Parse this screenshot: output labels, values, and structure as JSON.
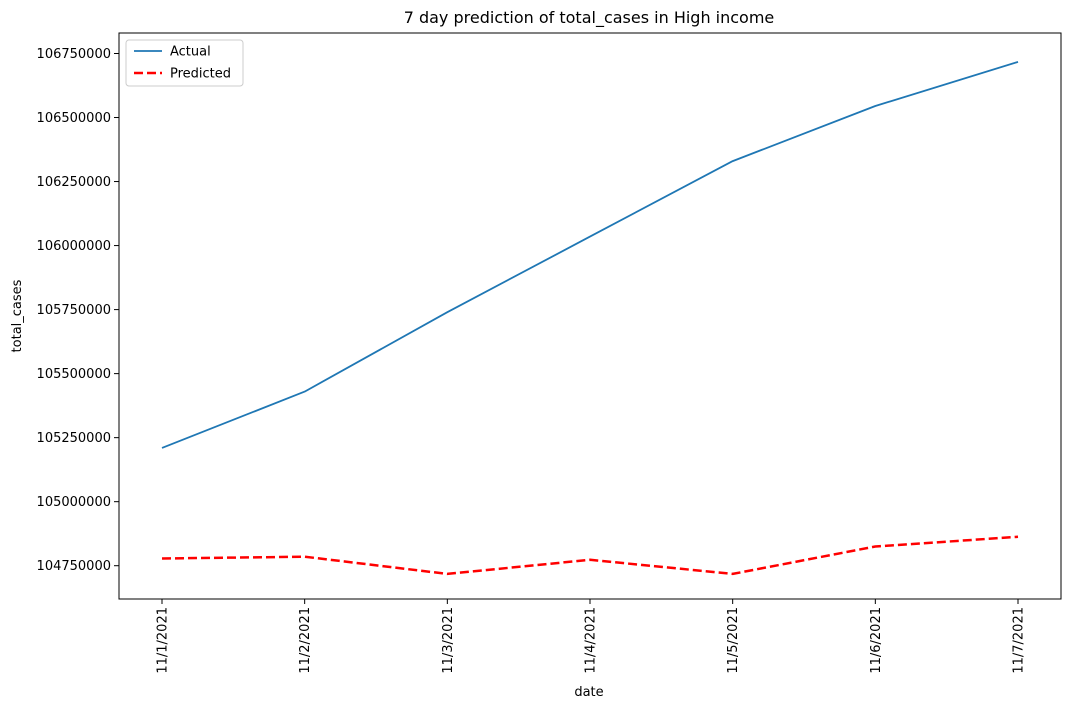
{
  "chart_data": {
    "type": "line",
    "title": "7 day prediction of total_cases in High income",
    "xlabel": "date",
    "ylabel": "total_cases",
    "categories": [
      "11/1/2021",
      "11/2/2021",
      "11/3/2021",
      "11/4/2021",
      "11/5/2021",
      "11/6/2021",
      "11/7/2021"
    ],
    "yticks": [
      104750000,
      105000000,
      105250000,
      105500000,
      105750000,
      106000000,
      106250000,
      106500000,
      106750000
    ],
    "ylim": [
      104620000,
      106830000
    ],
    "grid": false,
    "legend_position": "top-left",
    "series": [
      {
        "name": "Actual",
        "color": "#1f77b4",
        "dash": "solid",
        "values": [
          105210000,
          105430000,
          105740000,
          106035000,
          106330000,
          106545000,
          106717000
        ]
      },
      {
        "name": "Predicted",
        "color": "#ff0000",
        "dash": "dashed",
        "values": [
          104778000,
          104785000,
          104718000,
          104773000,
          104718000,
          104825000,
          104863000
        ]
      }
    ]
  }
}
